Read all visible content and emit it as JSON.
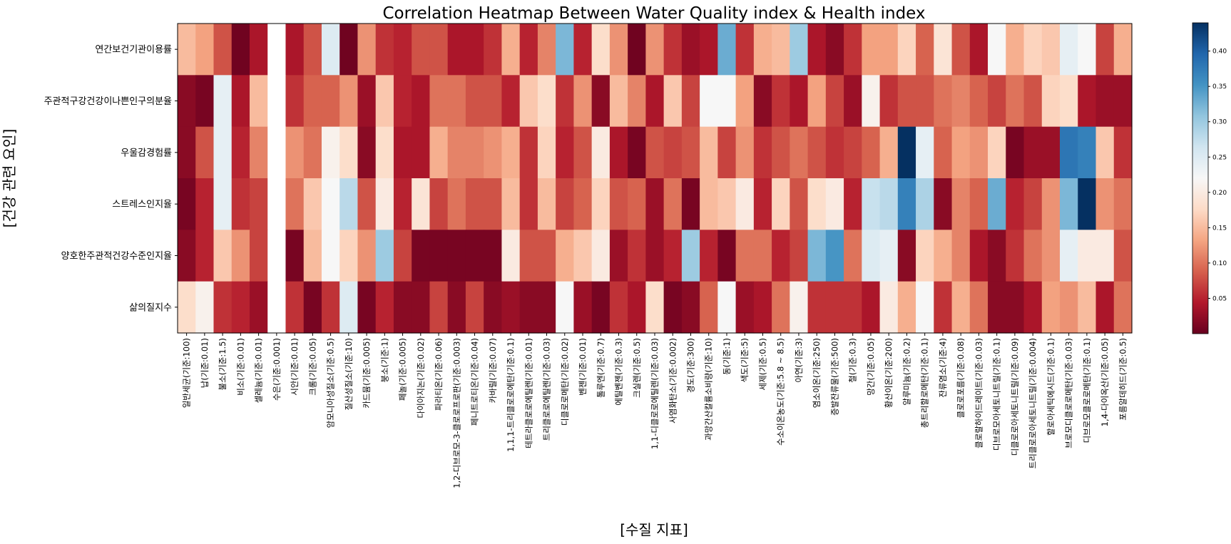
{
  "chart_data": {
    "type": "heatmap",
    "title": "Correlation Heatmap Between Water Quality index & Health index",
    "xlabel": "[수질 지표]",
    "ylabel": "[건강 관련 요인]",
    "rows": [
      "연간보건기관이용률",
      "주관적구강건강이나쁜인구의분율",
      "우울감경험률",
      "스트레스인지율",
      "양호한주관적건강수준인지율",
      "삶의질지수"
    ],
    "columns": [
      "일반세균(기준:100)",
      "납(기준:0.01)",
      "불소(기준:1.5)",
      "비소(기준:0.01)",
      "셀레늄(기준:0.01)",
      "수은(기준:0.001)",
      "시안(기준:0.01)",
      "크롬(기준:0.05)",
      "암모니아성질소(기준:0.5)",
      "질산성질소(기준:10)",
      "카드뮴(기준:0.005)",
      "붕소(기준:1)",
      "페놀(기준:0.005)",
      "다이아지논(기준:0.02)",
      "파라티온(기준:0.06)",
      "1,2-디브로모-3-클로로프로판(기준:0.003)",
      "페니트로티온(기준:0.04)",
      "카바릴(기준:0.07)",
      "1,1,1-트리클로로에탄(기준:0.1)",
      "테트라클로로에틸렌(기준:0.01)",
      "트리클로로에틸렌(기준:0.03)",
      "디클로로메탄(기준:0.02)",
      "벤젠(기준:0.01)",
      "톨루엔(기준:0.7)",
      "에틸벤젠(기준:0.3)",
      "크실렌(기준:0.5)",
      "1,1-디클로로에틸렌(기준:0.03)",
      "사염화탄소(기준:0.002)",
      "경도(기준:300)",
      "과망간산칼륨소비량(기준:10)",
      "동(기준:1)",
      "색도(기준:5)",
      "세제(기준:0.5)",
      "수소이온농도(기준:5.8 ~ 8.5)",
      "아연(기준:3)",
      "염소이온(기준:250)",
      "증발잔류물(기준:500)",
      "철(기준:0.3)",
      "망간(기준:0.05)",
      "황산이온(기준:200)",
      "알루미늄(기준:0.2)",
      "총트리할로메탄(기준:0.1)",
      "잔류염소(기준:4)",
      "클로로포름(기준:0.08)",
      "클로랄하이드레이트(기준:0.03)",
      "디브로모아세토니트릴(기준:0.1)",
      "디클로로아세토니트릴(기준:0.09)",
      "트리클로로아세토니트릴(기준:0.004)",
      "할로아세틱에시드(기준:0.1)",
      "브로모디클로로메탄(기준:0.03)",
      "디브로모클로로메탄(기준:0.1)",
      "1,4-다이옥산(기준:0.05)",
      "포름알데히드(기준:0.5)"
    ],
    "values": [
      [
        0.15,
        0.13,
        0.08,
        0.005,
        0.04,
        null,
        0.04,
        0.08,
        0.25,
        0.005,
        0.12,
        0.06,
        0.05,
        0.08,
        0.08,
        0.04,
        0.04,
        0.06,
        0.14,
        0.05,
        0.11,
        0.32,
        0.05,
        0.18,
        0.12,
        0.005,
        0.12,
        0.06,
        0.03,
        0.04,
        0.33,
        0.06,
        0.14,
        0.15,
        0.3,
        0.04,
        0.02,
        0.06,
        0.13,
        0.13,
        0.17,
        0.09,
        0.19,
        0.08,
        0.04,
        0.22,
        0.14,
        0.17,
        0.16,
        0.24,
        0.22,
        0.07,
        0.14
      ],
      [
        0.02,
        0.01,
        0.24,
        0.04,
        0.15,
        null,
        0.06,
        0.09,
        0.09,
        0.12,
        0.03,
        0.16,
        0.05,
        0.04,
        0.1,
        0.1,
        0.08,
        0.08,
        0.05,
        0.16,
        0.18,
        0.06,
        0.12,
        0.02,
        0.15,
        0.11,
        0.04,
        0.16,
        0.07,
        0.22,
        0.22,
        0.13,
        0.02,
        0.06,
        0.04,
        0.13,
        0.07,
        0.03,
        0.21,
        0.06,
        0.08,
        0.08,
        0.1,
        0.11,
        0.09,
        0.07,
        0.1,
        0.08,
        0.17,
        0.18,
        0.04,
        0.03,
        0.03
      ],
      [
        0.02,
        0.08,
        0.24,
        0.05,
        0.11,
        null,
        0.12,
        0.1,
        0.21,
        0.18,
        0.02,
        0.18,
        0.04,
        0.04,
        0.14,
        0.11,
        0.11,
        0.12,
        0.14,
        0.06,
        0.17,
        0.05,
        0.08,
        0.2,
        0.04,
        0.01,
        0.08,
        0.07,
        0.08,
        0.15,
        0.07,
        0.12,
        0.06,
        0.08,
        0.1,
        0.08,
        0.06,
        0.07,
        0.09,
        0.14,
        0.44,
        0.24,
        0.09,
        0.13,
        0.12,
        0.17,
        0.01,
        0.03,
        0.03,
        0.38,
        0.37,
        0.16,
        0.06
      ],
      [
        0.01,
        0.05,
        0.24,
        0.06,
        0.07,
        null,
        0.1,
        0.16,
        0.22,
        0.28,
        0.08,
        0.2,
        0.05,
        0.19,
        0.07,
        0.1,
        0.08,
        0.08,
        0.15,
        0.06,
        0.15,
        0.07,
        0.09,
        0.17,
        0.08,
        0.09,
        0.03,
        0.1,
        0.01,
        0.15,
        0.16,
        0.2,
        0.05,
        0.17,
        0.08,
        0.18,
        0.2,
        0.05,
        0.27,
        0.28,
        0.37,
        0.29,
        0.02,
        0.11,
        0.09,
        0.33,
        0.05,
        0.07,
        0.12,
        0.32,
        0.44,
        0.12,
        0.1
      ],
      [
        0.02,
        0.05,
        0.16,
        0.12,
        0.07,
        null,
        0.01,
        0.15,
        0.22,
        0.17,
        0.12,
        0.3,
        0.07,
        0.01,
        0.01,
        0.01,
        0.01,
        0.01,
        0.2,
        0.08,
        0.08,
        0.14,
        0.16,
        0.2,
        0.03,
        0.06,
        0.03,
        0.05,
        0.3,
        0.05,
        0.01,
        0.1,
        0.1,
        0.05,
        0.07,
        0.32,
        0.35,
        0.1,
        0.25,
        0.24,
        0.02,
        0.17,
        0.14,
        0.11,
        0.04,
        0.02,
        0.06,
        0.1,
        0.12,
        0.24,
        0.2,
        0.2,
        0.08
      ],
      [
        0.18,
        0.21,
        0.06,
        0.05,
        0.03,
        null,
        0.06,
        0.01,
        0.06,
        0.25,
        0.01,
        0.05,
        0.02,
        0.02,
        0.07,
        0.02,
        0.07,
        0.02,
        0.03,
        0.02,
        0.02,
        0.22,
        0.03,
        0.01,
        0.06,
        0.04,
        0.18,
        0.01,
        0.02,
        0.09,
        0.22,
        0.03,
        0.04,
        0.1,
        0.21,
        0.06,
        0.06,
        0.06,
        0.04,
        0.2,
        0.14,
        0.22,
        0.06,
        0.14,
        0.1,
        0.02,
        0.02,
        0.04,
        0.13,
        0.12,
        0.15,
        0.04,
        0.1
      ]
    ],
    "colormap": "RdBu",
    "vmin": 0.0,
    "vmax": 0.44,
    "colorbar_ticks": [
      0.05,
      0.1,
      0.15,
      0.2,
      0.25,
      0.3,
      0.35,
      0.4
    ],
    "colorbar_tick_labels": [
      "0.05",
      "0.10",
      "0.15",
      "0.20",
      "0.25",
      "0.30",
      "0.35",
      "0.40"
    ],
    "grid": false,
    "legend": "colorbar-right"
  }
}
